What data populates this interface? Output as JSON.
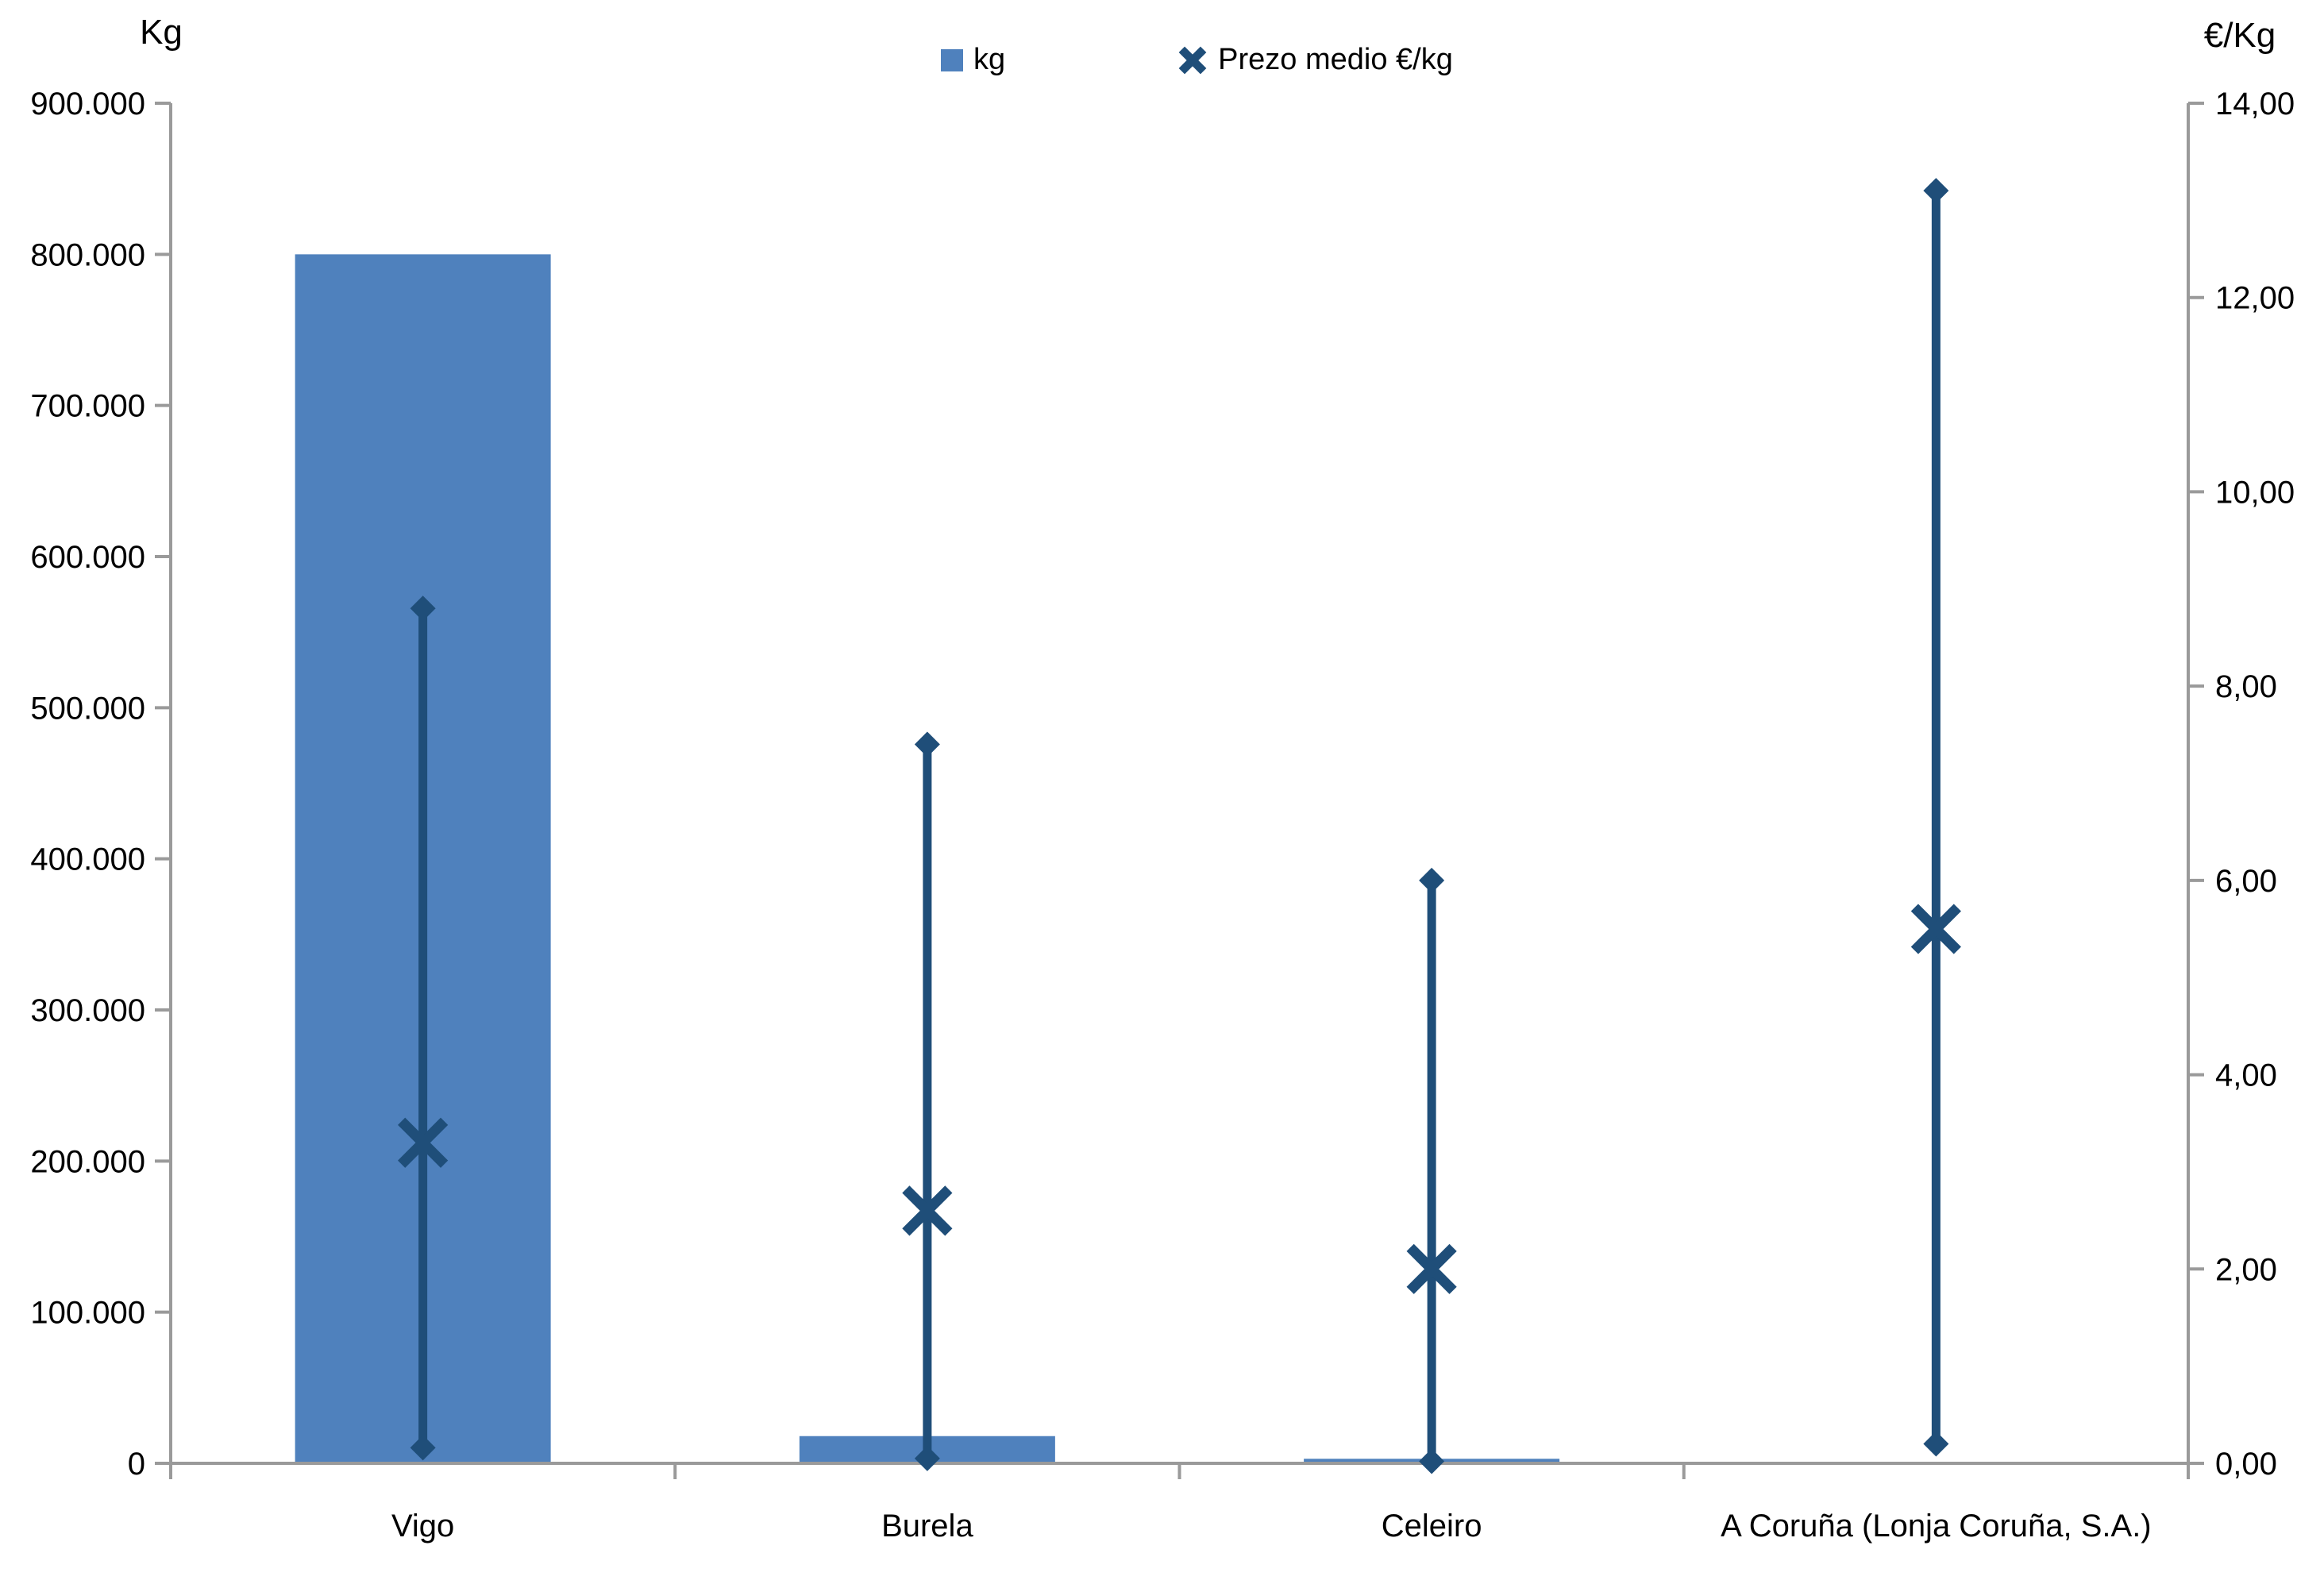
{
  "colors": {
    "bar": "#4F81BD",
    "line": "#1F4E79",
    "axis": "#9A9A9A",
    "text": "#000000"
  },
  "legend": {
    "position": "top-center",
    "items": [
      {
        "label": "kg",
        "marker": "square"
      },
      {
        "label": "Prezo medio €/kg",
        "marker": "x"
      }
    ]
  },
  "chart_data": {
    "type": "bar",
    "subtype": "combo bar + high-low price line with average X markers",
    "categories": [
      "Vigo",
      "Burela",
      "Celeiro",
      "A Coruña (Lonja Coruña, S.A.)"
    ],
    "series": [
      {
        "name": "kg",
        "type": "bar",
        "axis": "left",
        "values": [
          800000,
          18000,
          3000,
          1000
        ]
      },
      {
        "name": "Prezo medio €/kg",
        "type": "hilo-x",
        "axis": "right",
        "avg": [
          3.3,
          2.6,
          2.0,
          5.5
        ],
        "min": [
          0.16,
          0.05,
          0.02,
          0.2
        ],
        "max": [
          8.8,
          7.4,
          6.0,
          13.1
        ]
      }
    ],
    "left_axis": {
      "label": "Kg",
      "min": 0,
      "max": 900000,
      "step": 100000,
      "tick_format": "thousands-dot"
    },
    "right_axis": {
      "label": "€/Kg",
      "min": 0,
      "max": 14,
      "step": 2,
      "tick_format": "comma-2dp"
    },
    "grid": false,
    "title": ""
  }
}
